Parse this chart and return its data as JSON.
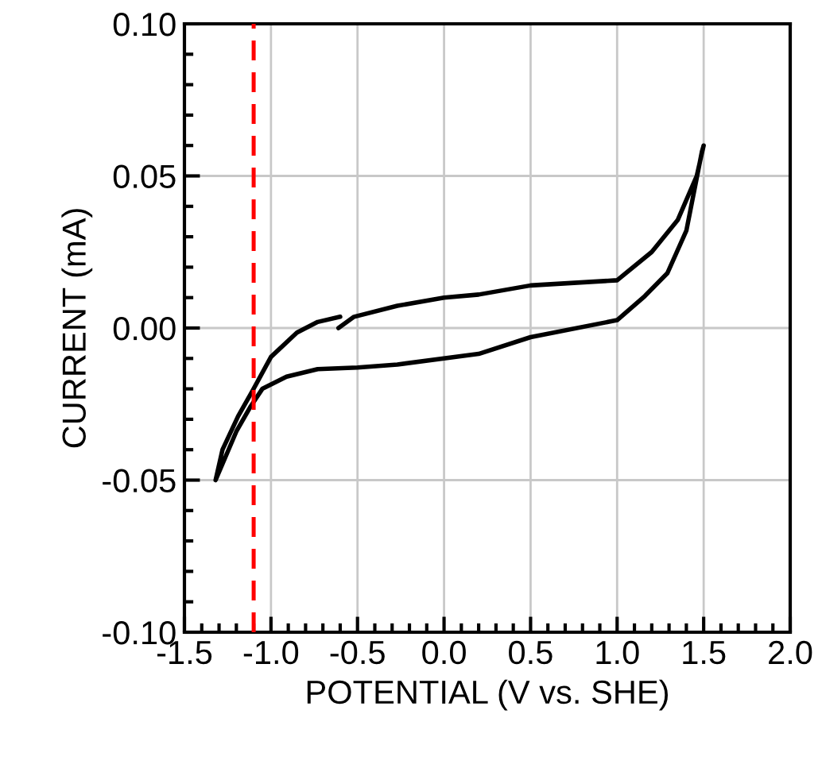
{
  "chart_data": {
    "type": "line",
    "xlabel": "POTENTIAL (V vs. SHE)",
    "ylabel": "CURRENT (mA)",
    "series": [
      {
        "color": "#000000",
        "x": [
          -0.61,
          -0.52,
          -0.27,
          0.0,
          0.2,
          0.5,
          1.0,
          1.2,
          1.35,
          1.46,
          1.5,
          1.49,
          1.4,
          1.29,
          1.16,
          1.0,
          0.5,
          0.2,
          -0.27,
          -0.5,
          -0.73,
          -0.91,
          -1.05,
          -1.12,
          -1.2,
          -1.32,
          -1.28,
          -1.19,
          -1.11,
          -1.0,
          -0.85,
          -0.73,
          -0.6
        ],
        "values": [
          0.0,
          0.0037,
          0.0073,
          0.01,
          0.011,
          0.014,
          0.0157,
          0.025,
          0.0355,
          0.05,
          0.06,
          0.058,
          0.032,
          0.018,
          0.0105,
          0.0026,
          -0.003,
          -0.0085,
          -0.012,
          -0.013,
          -0.0135,
          -0.016,
          -0.02,
          -0.026,
          -0.034,
          -0.05,
          -0.04,
          -0.029,
          -0.021,
          -0.0095,
          -0.0015,
          0.002,
          0.0037
        ]
      }
    ],
    "xlim": [
      -1.5,
      2.0
    ],
    "ylim": [
      -0.1,
      0.1
    ],
    "xticks": [
      {
        "value": -1.5,
        "label": "-1.5"
      },
      {
        "value": -1.0,
        "label": "-1.0"
      },
      {
        "value": -0.5,
        "label": "-0.5"
      },
      {
        "value": 0,
        "label": "0.0"
      },
      {
        "value": 0.5,
        "label": "0.5"
      },
      {
        "value": 1.0,
        "label": "1.0"
      },
      {
        "value": 1.5,
        "label": "1.5"
      },
      {
        "value": 2.0,
        "label": "2.0"
      }
    ],
    "yticks": [
      {
        "value": -0.1,
        "label": "-0.10"
      },
      {
        "value": -0.05,
        "label": "-0.05"
      },
      {
        "value": 0,
        "label": "0.00"
      },
      {
        "value": 0.05,
        "label": "0.05"
      },
      {
        "value": 0.1,
        "label": "0.10"
      }
    ],
    "ref_lines": [
      {
        "axis": "x",
        "value": -1.1,
        "color": "#ff0000",
        "line_style": "dashed"
      }
    ],
    "grid": true,
    "legend": false
  }
}
